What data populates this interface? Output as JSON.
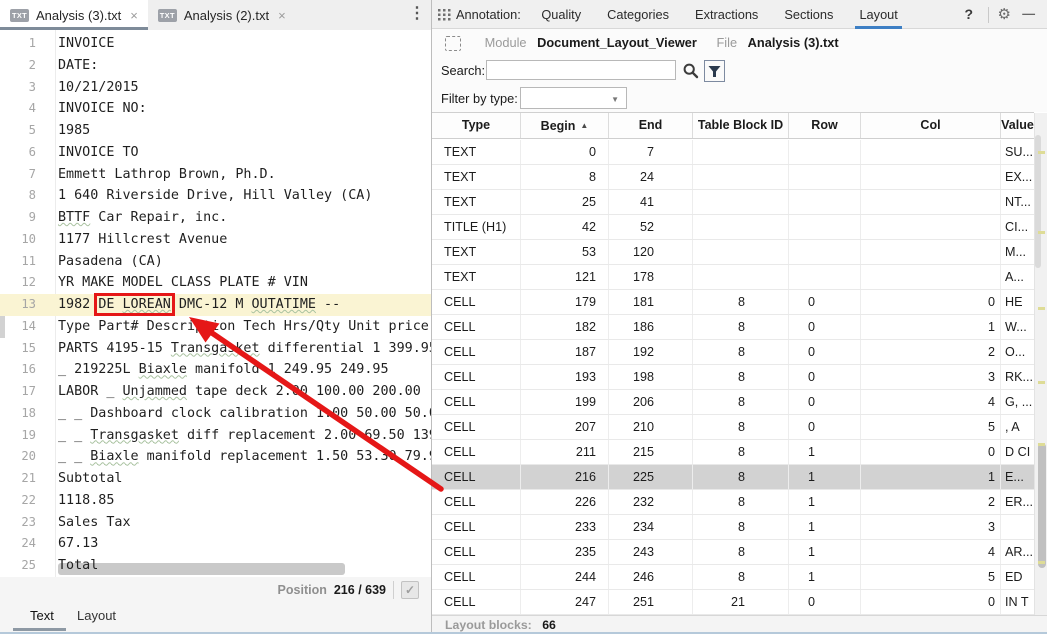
{
  "editor": {
    "tabs": [
      {
        "label": "Analysis (3).txt",
        "icon": "TXT",
        "active": true
      },
      {
        "label": "Analysis (2).txt",
        "icon": "TXT",
        "active": false
      }
    ],
    "lines": [
      {
        "n": 1,
        "text": "INVOICE"
      },
      {
        "n": 2,
        "text": "DATE:"
      },
      {
        "n": 3,
        "text": "10/21/2015"
      },
      {
        "n": 4,
        "text": "INVOICE NO:"
      },
      {
        "n": 5,
        "text": "1985"
      },
      {
        "n": 6,
        "text": "INVOICE TO"
      },
      {
        "n": 7,
        "text": "Emmett Lathrop Brown, Ph.D."
      },
      {
        "n": 8,
        "text": "1 640 Riverside Drive, Hill Valley (CA)"
      },
      {
        "n": 9,
        "text": "BTTF Car Repair, inc.",
        "wavy": [
          "BTTF"
        ]
      },
      {
        "n": 10,
        "text": "1177 Hillcrest Avenue"
      },
      {
        "n": 11,
        "text": "Pasadena (CA)"
      },
      {
        "n": 12,
        "text": "YR MAKE MODEL CLASS PLATE # VIN"
      },
      {
        "n": 13,
        "text": "1982 DE LOREAN DMC-12 M OUTATIME --",
        "highlight": true,
        "boxed": "DE LOREAN",
        "wavy": [
          "LOREAN",
          "OUTATIME"
        ]
      },
      {
        "n": 14,
        "text": "Type Part# Description Tech Hrs/Qty Unit price"
      },
      {
        "n": 15,
        "text": "PARTS 4195-15 Transgasket differential 1 399.95",
        "wavy": [
          "Transgasket"
        ]
      },
      {
        "n": 16,
        "text": "_ 219225L Biaxle manifold 1 249.95 249.95",
        "wavy": [
          "Biaxle"
        ]
      },
      {
        "n": 17,
        "text": "LABOR _ Unjammed tape deck 2.00 100.00 200.00",
        "wavy": [
          "Unjammed"
        ]
      },
      {
        "n": 18,
        "text": "_ _ Dashboard clock calibration 1.00 50.00 50.0"
      },
      {
        "n": 19,
        "text": "_ _ Transgasket diff replacement 2.00 69.50 139",
        "wavy": [
          "Transgasket"
        ]
      },
      {
        "n": 20,
        "text": "_ _ Biaxle manifold replacement 1.50 53.30 79.9",
        "wavy": [
          "Biaxle"
        ]
      },
      {
        "n": 21,
        "text": "Subtotal"
      },
      {
        "n": 22,
        "text": "1118.85"
      },
      {
        "n": 23,
        "text": "Sales Tax"
      },
      {
        "n": 24,
        "text": "67.13"
      },
      {
        "n": 25,
        "text": "Total"
      }
    ],
    "position_label": "Position",
    "position_value": "216 / 639",
    "bottom_tabs": [
      "Text",
      "Layout"
    ],
    "active_bottom_tab": "Text"
  },
  "panel": {
    "tabs_label": "Annotation:",
    "tabs": [
      "Quality",
      "Categories",
      "Extractions",
      "Sections",
      "Layout"
    ],
    "active_tab": "Layout",
    "module_label": "Module",
    "module_value": "Document_Layout_Viewer",
    "file_label": "File",
    "file_value": "Analysis (3).txt",
    "search_label": "Search:",
    "search_value": "",
    "filter_label": "Filter by type:",
    "filter_value": "",
    "table": {
      "columns": [
        "Type",
        "Begin",
        "End",
        "Table Block ID",
        "Row",
        "Col",
        "Value"
      ],
      "sort_column": "Begin",
      "sort_direction": "asc",
      "selected_index": 13,
      "rows": [
        [
          "TEXT",
          "0",
          "7",
          "",
          "",
          "",
          "SU..."
        ],
        [
          "TEXT",
          "8",
          "24",
          "",
          "",
          "",
          "EX..."
        ],
        [
          "TEXT",
          "25",
          "41",
          "",
          "",
          "",
          "NT..."
        ],
        [
          "TITLE (H1)",
          "42",
          "52",
          "",
          "",
          "",
          "CI..."
        ],
        [
          "TEXT",
          "53",
          "120",
          "",
          "",
          "",
          "M..."
        ],
        [
          "TEXT",
          "121",
          "178",
          "",
          "",
          "",
          "A..."
        ],
        [
          "CELL",
          "179",
          "181",
          "8",
          "0",
          "0",
          "HE"
        ],
        [
          "CELL",
          "182",
          "186",
          "8",
          "0",
          "1",
          "W..."
        ],
        [
          "CELL",
          "187",
          "192",
          "8",
          "0",
          "2",
          "O..."
        ],
        [
          "CELL",
          "193",
          "198",
          "8",
          "0",
          "3",
          "RK..."
        ],
        [
          "CELL",
          "199",
          "206",
          "8",
          "0",
          "4",
          "G, ..."
        ],
        [
          "CELL",
          "207",
          "210",
          "8",
          "0",
          "5",
          ", A"
        ],
        [
          "CELL",
          "211",
          "215",
          "8",
          "1",
          "0",
          "D CI"
        ],
        [
          "CELL",
          "216",
          "225",
          "8",
          "1",
          "1",
          "E..."
        ],
        [
          "CELL",
          "226",
          "232",
          "8",
          "1",
          "2",
          "ER..."
        ],
        [
          "CELL",
          "233",
          "234",
          "8",
          "1",
          "3",
          ""
        ],
        [
          "CELL",
          "235",
          "243",
          "8",
          "1",
          "4",
          "AR..."
        ],
        [
          "CELL",
          "244",
          "246",
          "8",
          "1",
          "5",
          "ED"
        ],
        [
          "CELL",
          "247",
          "251",
          "21",
          "0",
          "0",
          "IN T"
        ]
      ]
    },
    "footer_label": "Layout blocks:",
    "footer_value": "66"
  },
  "icons": {
    "checkmark": "✓",
    "kebab": "⋮",
    "gear": "⚙",
    "minimize": "—",
    "help": "?",
    "close": "×",
    "sort_asc": "▲",
    "caret_down": "▼"
  },
  "colors": {
    "accent_blue": "#3d7fc4",
    "annotation_red": "#e51717",
    "selected_row": "#d2d2d2",
    "line_highlight": "#faf4d3",
    "active_tab_underline": "#7e8b99"
  }
}
